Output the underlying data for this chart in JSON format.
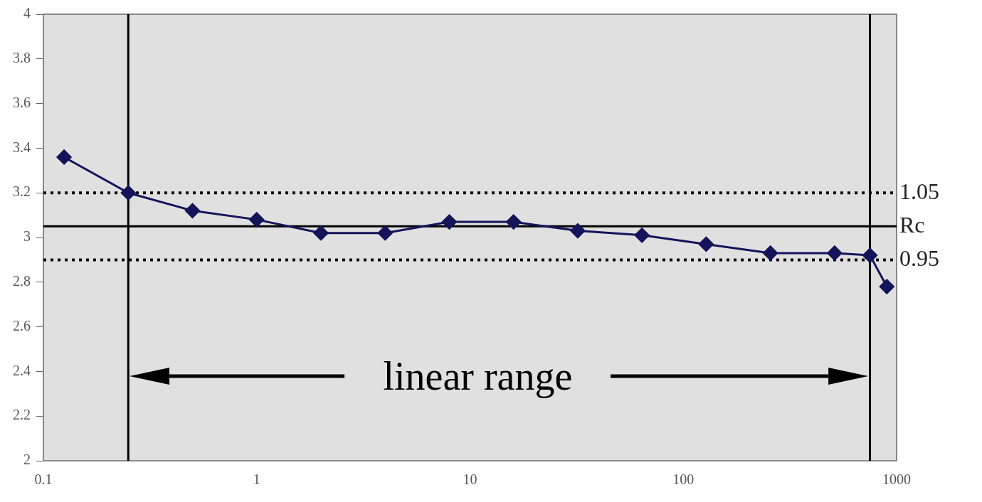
{
  "chart_data": {
    "type": "line",
    "x": [
      0.125,
      0.25,
      0.5,
      1,
      2,
      4,
      8,
      16,
      32,
      64,
      128,
      256,
      512,
      750,
      900
    ],
    "series": [
      {
        "color": "#14145a",
        "values": [
          3.36,
          3.2,
          3.12,
          3.08,
          3.02,
          3.02,
          3.07,
          3.07,
          3.03,
          3.01,
          2.97,
          2.93,
          2.93,
          2.92,
          2.78
        ]
      }
    ],
    "xlim": [
      0.1,
      1000
    ],
    "xticks": [
      0.1,
      1,
      10,
      100,
      1000
    ],
    "ylim": [
      2,
      4
    ],
    "yticks": [
      2,
      2.2,
      2.4,
      2.6,
      2.8,
      3,
      3.2,
      3.4,
      3.6,
      3.8,
      4
    ],
    "log": "x",
    "grid": false,
    "legend": false,
    "marker": "diamond",
    "line_style": "solid",
    "ref_lines": [
      {
        "axis": "y",
        "value": 3.2,
        "line_style": "dotted",
        "color": "#000000"
      },
      {
        "axis": "y",
        "value": 3.05,
        "label": "Rc",
        "line_style": "solid",
        "color": "#000000"
      },
      {
        "axis": "y",
        "value": 2.9,
        "line_style": "dotted",
        "color": "#000000"
      },
      {
        "axis": "x",
        "value": 0.25,
        "line_style": "solid",
        "color": "#000000"
      },
      {
        "axis": "x",
        "value": 750,
        "line_style": "solid",
        "color": "#000000"
      }
    ],
    "annotations": [
      "linear range",
      "1.05",
      "0.95"
    ]
  }
}
